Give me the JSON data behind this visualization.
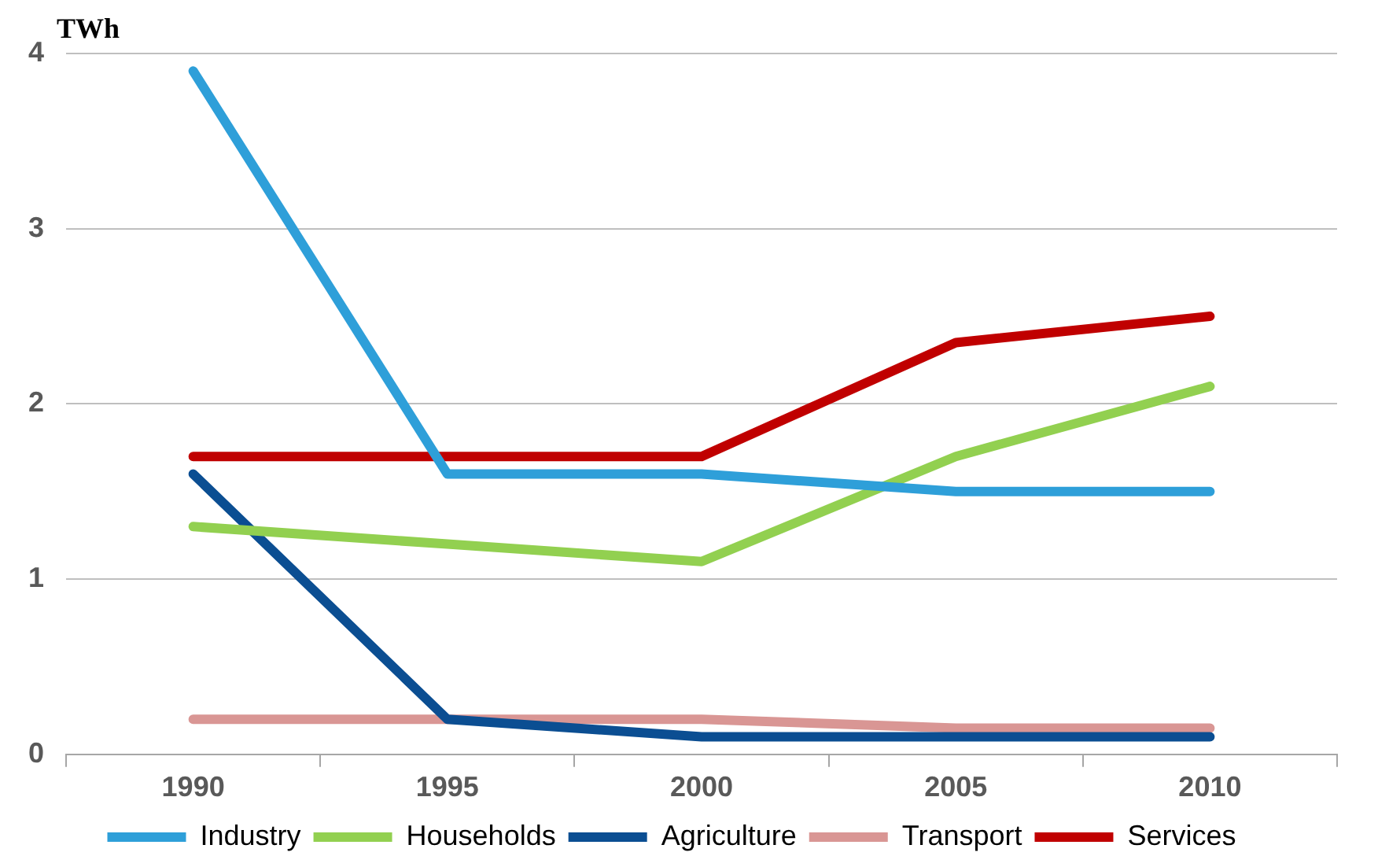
{
  "chart_data": {
    "type": "line",
    "ylabel": "TWh",
    "categories": [
      "1990",
      "1995",
      "2000",
      "2005",
      "2010"
    ],
    "ylim": [
      0,
      4
    ],
    "yticks": [
      0,
      1,
      2,
      3,
      4
    ],
    "grid": "y",
    "legend": "bottom",
    "marker": "none",
    "line_style": "solid",
    "series": [
      {
        "name": "Industry",
        "color": "#2e9fd9",
        "values": [
          3.9,
          1.6,
          1.6,
          1.5,
          1.5
        ]
      },
      {
        "name": "Households",
        "color": "#92d050",
        "values": [
          1.3,
          1.2,
          1.1,
          1.7,
          2.1
        ]
      },
      {
        "name": "Agriculture",
        "color": "#0b4e92",
        "values": [
          1.6,
          0.2,
          0.1,
          0.1,
          0.1
        ]
      },
      {
        "name": "Transport",
        "color": "#d99694",
        "values": [
          0.2,
          0.2,
          0.2,
          0.15,
          0.15
        ]
      },
      {
        "name": "Services",
        "color": "#c00000",
        "values": [
          1.7,
          1.7,
          1.7,
          2.35,
          2.5
        ]
      }
    ]
  }
}
